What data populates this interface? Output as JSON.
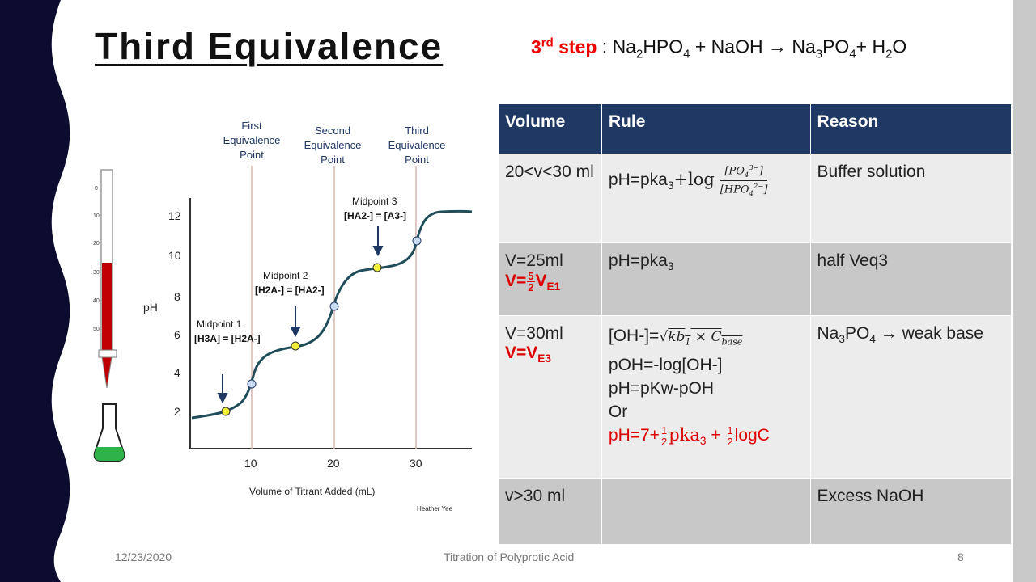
{
  "title": "Third Equivalence",
  "step": {
    "label": "3",
    "label_sup": "rd",
    "label_word": " step",
    "equation_parts": [
      " : Na",
      "2",
      "HPO",
      "4",
      " + NaOH ",
      "→",
      " Na",
      "3",
      "PO",
      "4",
      "+ H",
      "2",
      "O"
    ]
  },
  "graph": {
    "xlabel": "Volume of Titrant Added (mL)",
    "ylabel": "pH",
    "x_ticks": [
      "10",
      "20",
      "30"
    ],
    "y_ticks": [
      "2",
      "4",
      "6",
      "8",
      "10",
      "12"
    ],
    "equivalence_labels": [
      [
        "First",
        "Equivalence",
        "Point"
      ],
      [
        "Second",
        "Equivalence",
        "Point"
      ],
      [
        "Third",
        "Equivalence",
        "Point"
      ]
    ],
    "midpoints": [
      {
        "name": "Midpoint 1",
        "eq": "[H3A] = [H2A-]"
      },
      {
        "name": "Midpoint 2",
        "eq": "[H2A-] = [HA2-]"
      },
      {
        "name": "Midpoint 3",
        "eq": "[HA2-] = [A3-]"
      }
    ],
    "credit": "Heather Yee",
    "burette_ticks": [
      "0",
      "10",
      "20",
      "30",
      "40",
      "50"
    ],
    "colors": {
      "curve": "#1f4e5a",
      "midpoint": "#f4ef3a",
      "equivalence": "#c9dcf3",
      "liquid_burette": "#c00000",
      "liquid_flask": "#2cb34a"
    }
  },
  "table": {
    "headers": [
      "Volume",
      "Rule",
      "Reason"
    ],
    "rows": [
      {
        "volume": "20<v<30 ml",
        "rule_text": "pH=pka",
        "rule_sub": "3",
        "rule_op": "+log",
        "reason": "Buffer solution"
      },
      {
        "volume": "V=25ml",
        "volume_red_prefix": "V=",
        "frac_num": "5",
        "frac_den": "2",
        "volume_red_v": "V",
        "volume_red_sub": "E1",
        "rule_text": "pH=pka",
        "rule_sub": "3",
        "reason": "half Veq3"
      },
      {
        "volume": "V=30ml",
        "volume_red": "V=V",
        "volume_red_sub": "E3",
        "rule_lines": [
          "[OH-]=",
          "pOH=-log[OH-]",
          "pH=pKw-pOH",
          "Or"
        ],
        "rule_red": "pH=7+",
        "rule_red_mid": "pka",
        "rule_red_end": "logC",
        "reason_pre": "Na",
        "reason_sub": "3",
        "reason_mid": "PO",
        "reason_sub2": "4",
        "reason_post": " → weak base"
      },
      {
        "volume": "v>30 ml",
        "rule_text": "",
        "reason": "Excess NaOH"
      }
    ]
  },
  "footer": {
    "date": "12/23/2020",
    "center": "Titration of Polyprotic Acid",
    "page": "8"
  },
  "colors": {
    "left_band": "#0c0c2e",
    "header": "#203864",
    "accent_red": "#e00000",
    "right_band": "#c9c9c9"
  }
}
